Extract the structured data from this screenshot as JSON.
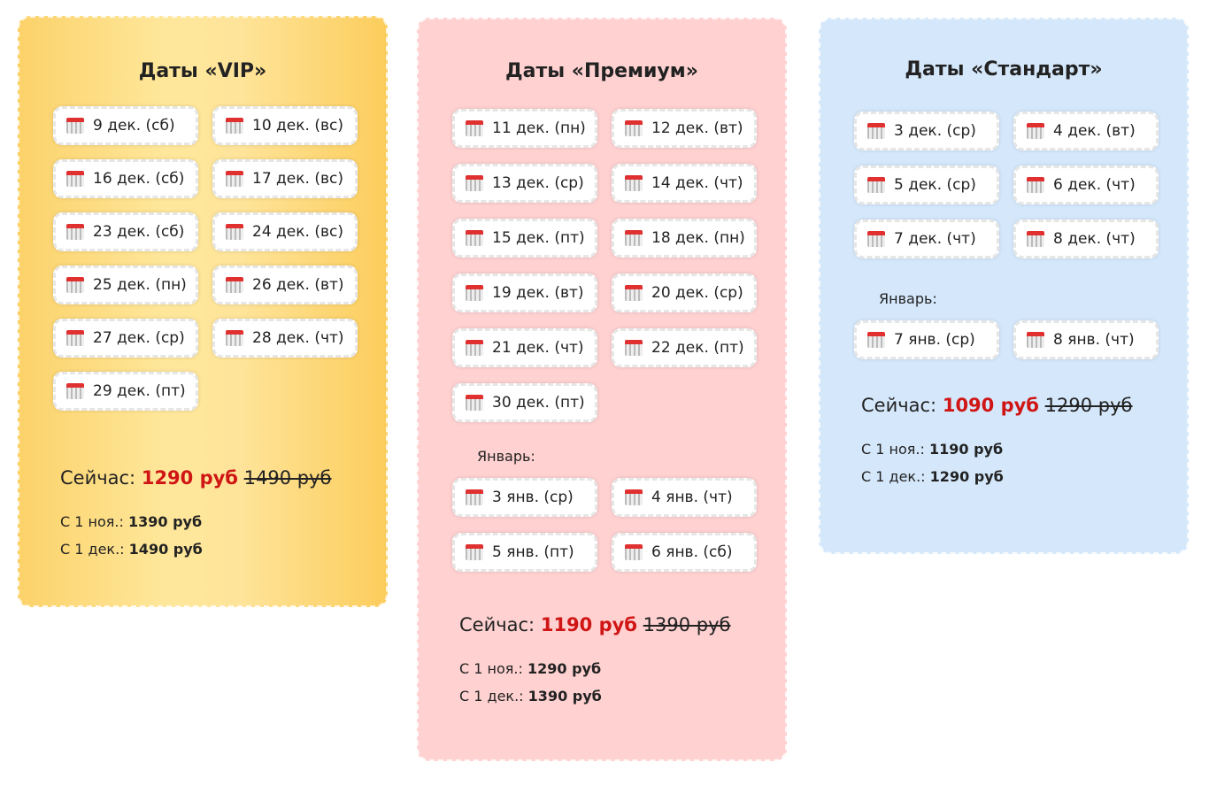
{
  "cards": [
    {
      "title": "Даты «VIP»",
      "dates": [
        "9 дек. (сб)",
        "10 дек. (вс)",
        "16 дек. (сб)",
        "17 дек. (вс)",
        "23 дек. (сб)",
        "24 дек. (вс)",
        "25 дек. (пн)",
        "26 дек. (вт)",
        "27 дек. (ср)",
        "28 дек. (чт)",
        "29 дек. (пт)"
      ],
      "now_label": "Сейчас:",
      "price": "1290 руб",
      "old_price": "1490 руб",
      "schedule": [
        {
          "label": "С 1 ноя.:",
          "price": "1390 руб"
        },
        {
          "label": "С 1 дек.:",
          "price": "1490 руб"
        }
      ]
    },
    {
      "title": "Даты «Премиум»",
      "dates": [
        "11 дек. (пн)",
        "12 дек. (вт)",
        "13 дек. (ср)",
        "14 дек. (чт)",
        "15 дек. (пт)",
        "18 дек. (пн)",
        "19 дек. (вт)",
        "20 дек. (ср)",
        "21 дек. (чт)",
        "22 дек. (пт)",
        "30 дек. (пт)"
      ],
      "january_label": "Январь:",
      "january_dates": [
        "3 янв. (ср)",
        "4 янв. (чт)",
        "5 янв. (пт)",
        "6 янв. (сб)"
      ],
      "now_label": "Сейчас:",
      "price": "1190 руб",
      "old_price": "1390 руб",
      "schedule": [
        {
          "label": "С 1 ноя.:",
          "price": "1290 руб"
        },
        {
          "label": "С 1 дек.:",
          "price": "1390 руб"
        }
      ]
    },
    {
      "title": "Даты «Стандарт»",
      "dates": [
        "3 дек. (ср)",
        "4 дек. (вт)",
        "5 дек. (ср)",
        "6 дек. (чт)",
        "7 дек. (чт)",
        "8 дек. (чт)"
      ],
      "january_label": "Январь:",
      "january_dates": [
        "7 янв. (ср)",
        "8 янв. (чт)"
      ],
      "now_label": "Сейчас:",
      "price": "1090 руб",
      "old_price": "1290 руб",
      "schedule": [
        {
          "label": "С 1 ноя.:",
          "price": "1190 руб"
        },
        {
          "label": "С 1 дек.:",
          "price": "1290 руб"
        }
      ]
    }
  ]
}
